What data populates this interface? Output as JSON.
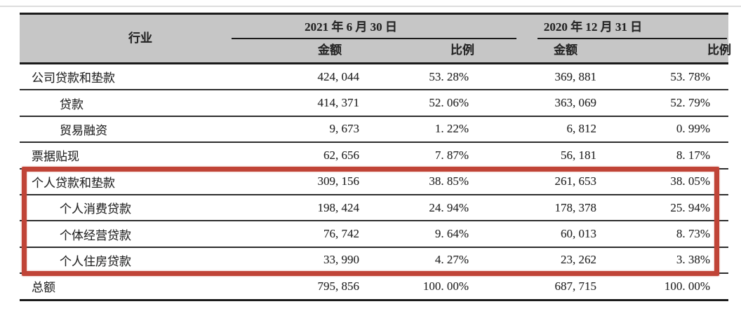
{
  "table": {
    "industry_header": "行业",
    "col_groups": [
      {
        "date": "2021 年 6 月 30 日",
        "amount_label": "金额",
        "ratio_label": "比例"
      },
      {
        "date": "2020 年 12 月 31 日",
        "amount_label": "金额",
        "ratio_label": "比例"
      }
    ],
    "rows": [
      {
        "label": "公司贷款和垫款",
        "amount_2021": "424, 044",
        "ratio_2021": "53. 28%",
        "amount_2020": "369, 881",
        "ratio_2020": "53. 78%"
      },
      {
        "label": "贷款",
        "amount_2021": "414, 371",
        "ratio_2021": "52. 06%",
        "amount_2020": "363, 069",
        "ratio_2020": "52. 79%"
      },
      {
        "label": "贸易融资",
        "amount_2021": "9, 673",
        "ratio_2021": "1. 22%",
        "amount_2020": "6, 812",
        "ratio_2020": "0. 99%"
      },
      {
        "label": "票据贴现",
        "amount_2021": "62, 656",
        "ratio_2021": "7. 87%",
        "amount_2020": "56, 181",
        "ratio_2020": "8. 17%"
      },
      {
        "label": "个人贷款和垫款",
        "amount_2021": "309, 156",
        "ratio_2021": "38. 85%",
        "amount_2020": "261, 653",
        "ratio_2020": "38. 05%"
      },
      {
        "label": "个人消费贷款",
        "amount_2021": "198, 424",
        "ratio_2021": "24. 94%",
        "amount_2020": "178, 378",
        "ratio_2020": "25. 94%"
      },
      {
        "label": "个体经营贷款",
        "amount_2021": "76, 742",
        "ratio_2021": "9. 64%",
        "amount_2020": "60, 013",
        "ratio_2020": "8. 73%"
      },
      {
        "label": "个人住房贷款",
        "amount_2021": "33, 990",
        "ratio_2021": "4. 27%",
        "amount_2020": "23, 262",
        "ratio_2020": "3. 38%"
      },
      {
        "label": "总额",
        "amount_2021": "795, 856",
        "ratio_2021": "100. 00%",
        "amount_2020": "687, 715",
        "ratio_2020": "100. 00%"
      }
    ],
    "highlight": {
      "color": "#c04437",
      "first_row": "个人贷款和垫款",
      "last_row": "个人住房贷款"
    },
    "header_bg": "#c6c6c6"
  }
}
